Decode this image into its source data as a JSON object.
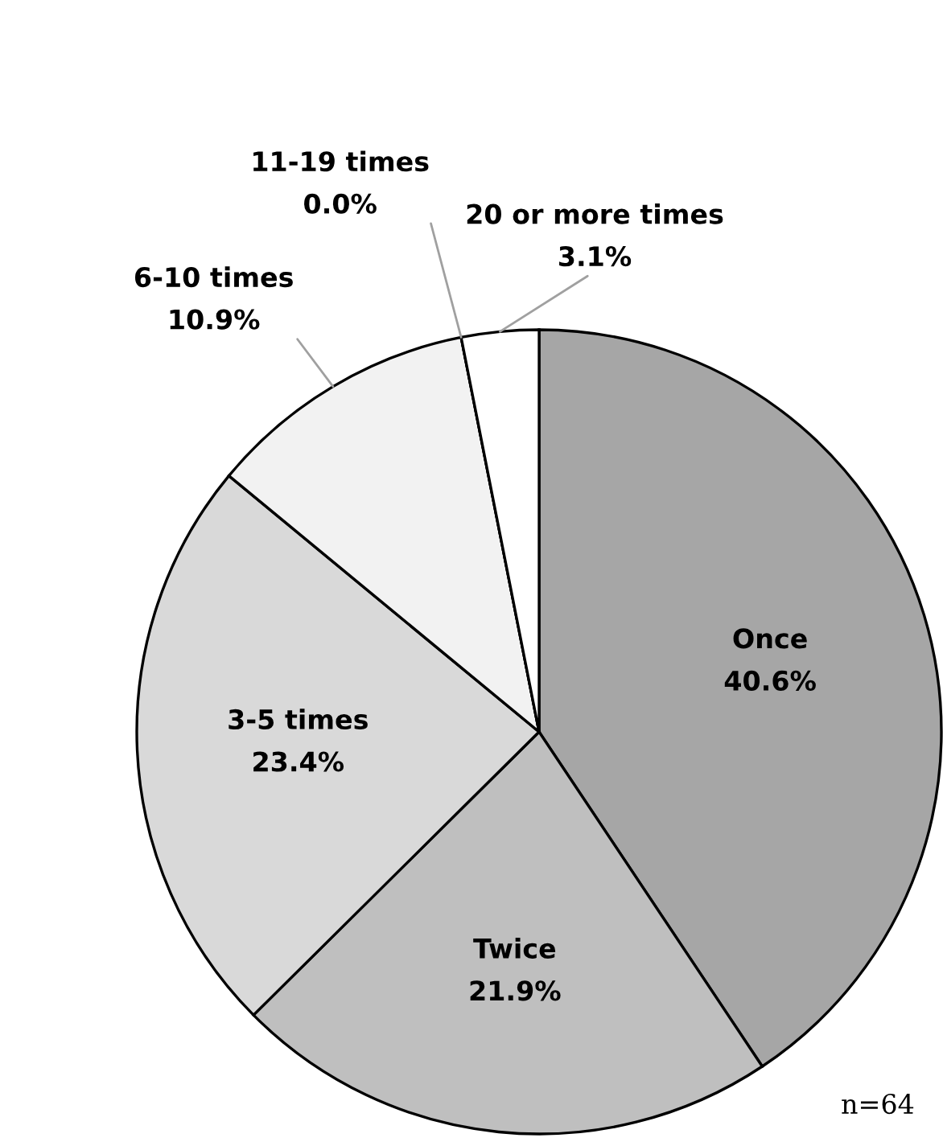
{
  "chart_data": {
    "type": "pie",
    "categories": [
      "Once",
      "Twice",
      "3-5 times",
      "6-10 times",
      "11-19 times",
      "20 or more times"
    ],
    "values": [
      40.6,
      21.9,
      23.4,
      10.9,
      0.0,
      3.1
    ],
    "value_labels": [
      "40.6%",
      "21.9%",
      "23.4%",
      "10.9%",
      "0.0%",
      "3.1%"
    ],
    "colors": [
      "#a6a6a6",
      "#bfbfbf",
      "#d9d9d9",
      "#f2f2f2",
      "#ffffff",
      "#ffffff"
    ],
    "annotations": [
      "n=64"
    ]
  }
}
